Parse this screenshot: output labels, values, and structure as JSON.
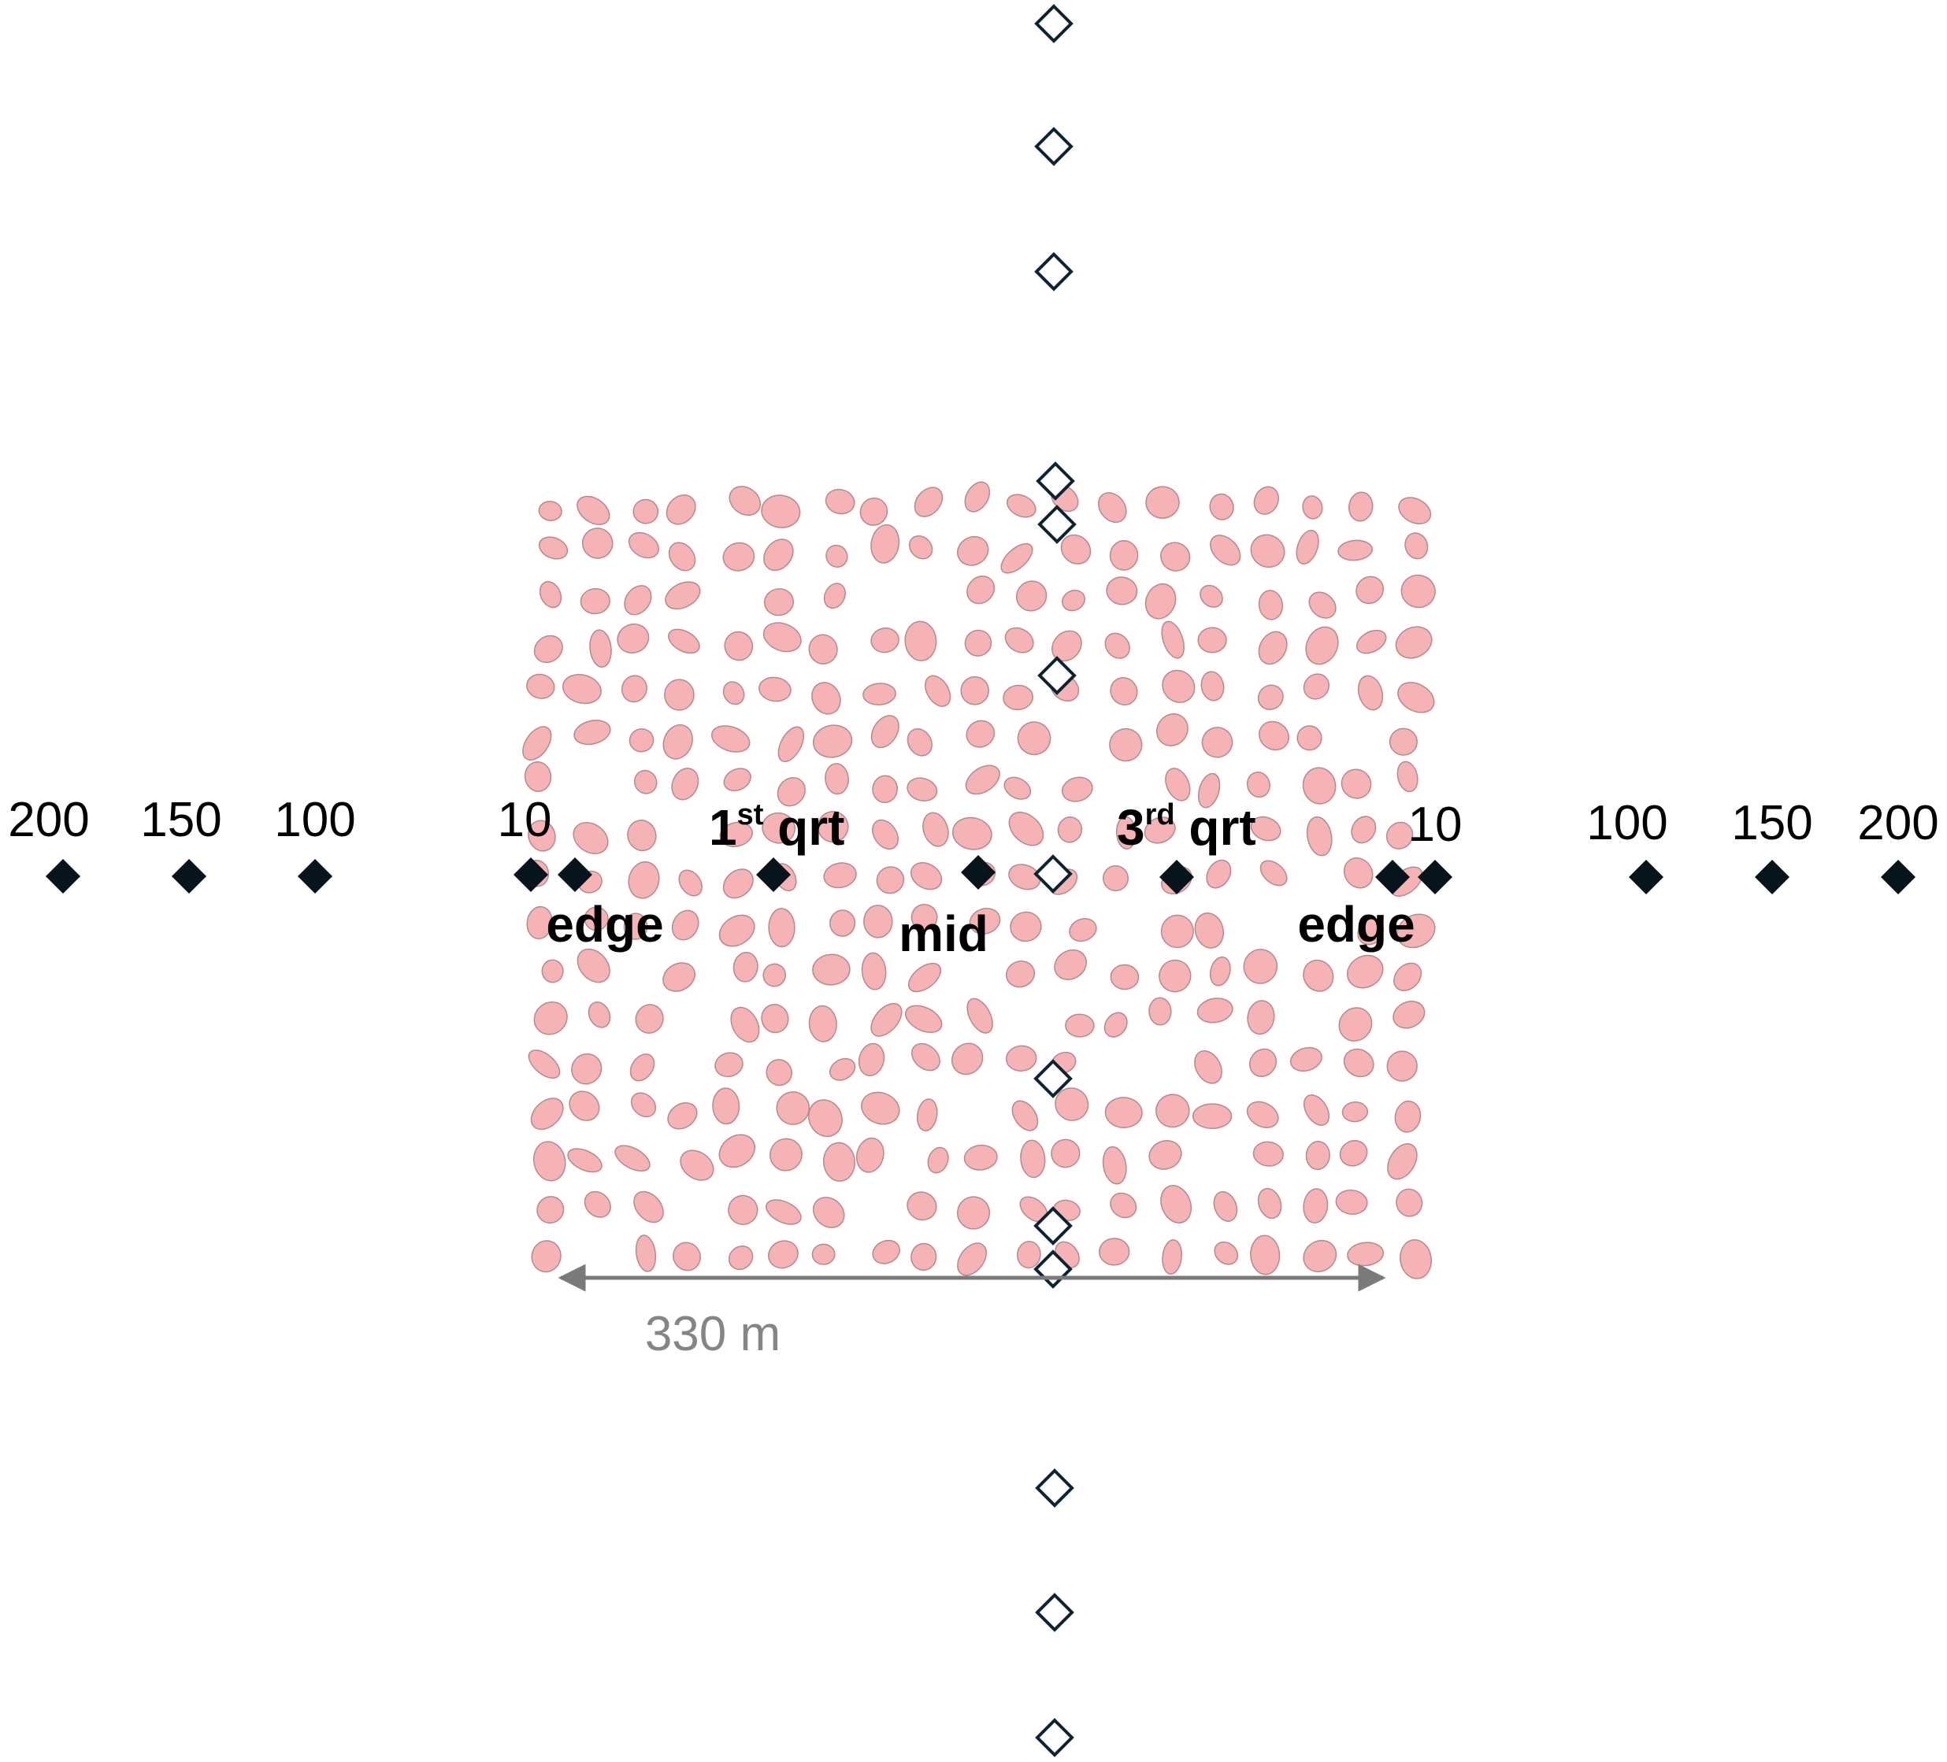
{
  "colors": {
    "patch_fill": "#f5b3b5",
    "patch_stroke": "#b58a8c",
    "filled_marker": "#08141c",
    "hollow_marker_stroke": "#0c2430",
    "scale_arrow": "#7a7a7a",
    "scale_text": "#858585"
  },
  "left_labels": {
    "d200": "200",
    "d150": "150",
    "d100": "100",
    "d10": "10",
    "edge": "edge",
    "first_num": "1",
    "first_sup": "st",
    "first_rest": " qrt",
    "mid": "mid"
  },
  "right_labels": {
    "third_num": "3",
    "third_sup": "rd",
    "third_rest": " qrt",
    "d10": "10",
    "edge": "edge",
    "d100": "100",
    "d150": "150",
    "d200": "200"
  },
  "scale": {
    "label": "330 m"
  },
  "icons": {
    "transect_marker_filled": "filled-diamond-icon",
    "transect_marker_hollow": "hollow-diamond-icon"
  }
}
